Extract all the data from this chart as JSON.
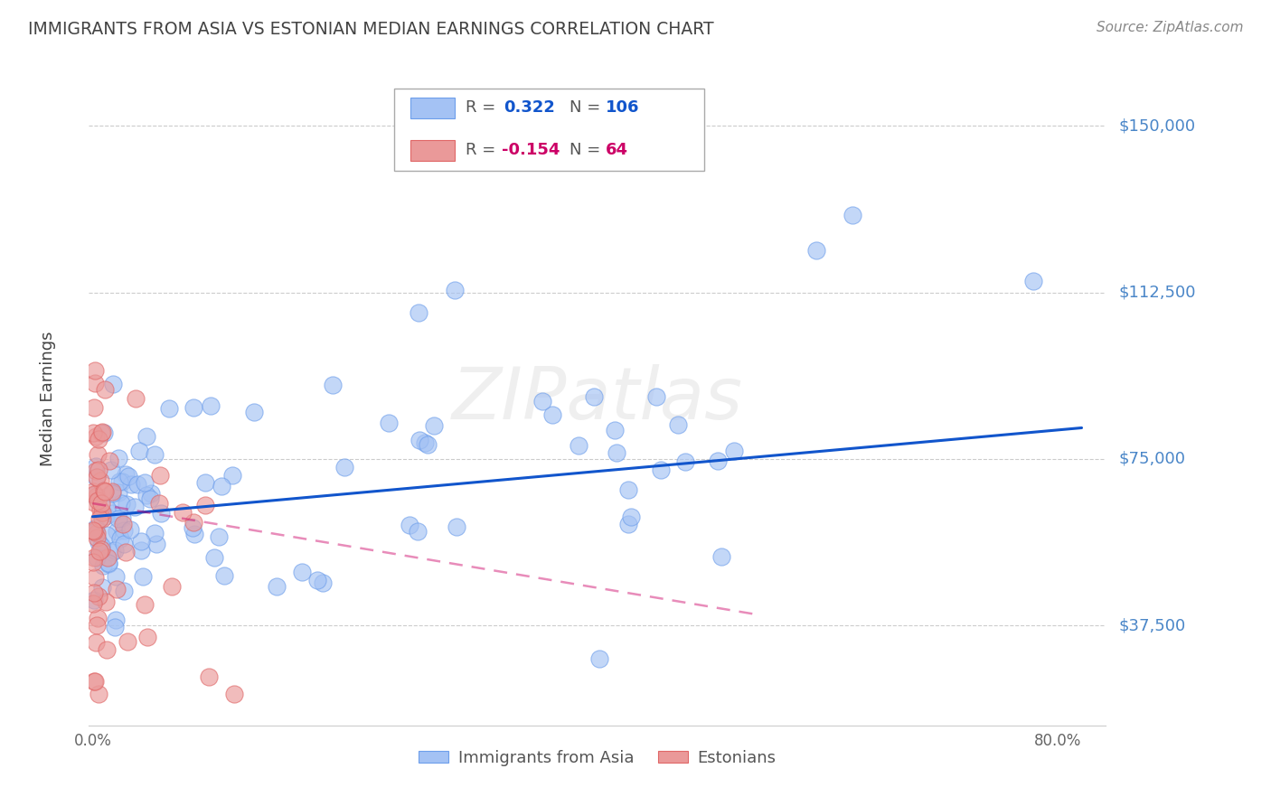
{
  "title": "IMMIGRANTS FROM ASIA VS ESTONIAN MEDIAN EARNINGS CORRELATION CHART",
  "source": "Source: ZipAtlas.com",
  "ylabel": "Median Earnings",
  "ytick_labels": [
    "$150,000",
    "$112,500",
    "$75,000",
    "$37,500"
  ],
  "ytick_values": [
    150000,
    112500,
    75000,
    37500
  ],
  "ymin": 15000,
  "ymax": 162000,
  "xmin": -0.003,
  "xmax": 0.84,
  "legend_blue_r": "0.322",
  "legend_blue_n": "106",
  "legend_pink_r": "-0.154",
  "legend_pink_n": "64",
  "blue_color": "#a4c2f4",
  "pink_color": "#ea9999",
  "blue_edge_color": "#6d9eeb",
  "pink_edge_color": "#e06666",
  "blue_line_color": "#1155cc",
  "pink_line_color": "#cc0066",
  "background_color": "#ffffff",
  "grid_color": "#cccccc",
  "axis_label_color": "#4a86c8",
  "title_color": "#434343",
  "watermark": "ZIPatlas"
}
